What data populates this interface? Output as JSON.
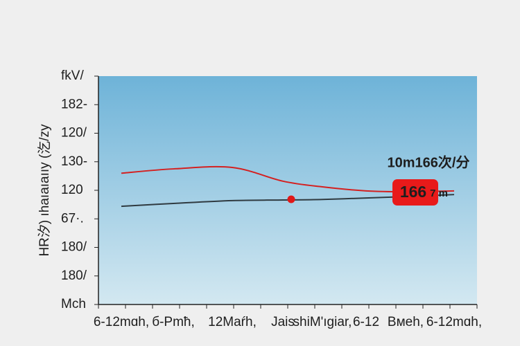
{
  "chart_data": {
    "type": "line",
    "y_label": "HR汐) ıhaıaıaııy (汔/zy",
    "categories": [
      "6-12mɑh,",
      "б-Pmħ,",
      "12Maŕh,",
      "Jais",
      "shiM'ıgiar,",
      "6-12",
      "Bмeh,",
      "6-12mɑh,"
    ],
    "series": [
      {
        "name": "red",
        "color": "#d42020",
        "values": [
          4.6,
          4.75,
          4.8,
          4.32,
          4.12,
          3.98,
          3.95,
          3.98
        ]
      },
      {
        "name": "dark",
        "color": "#2f3a40",
        "values": [
          3.44,
          3.54,
          3.64,
          3.66,
          3.68,
          3.73,
          3.78,
          3.85
        ]
      }
    ],
    "ylim": [
      0,
      8
    ],
    "yticks": [
      {
        "value": 0,
        "label": "Mch"
      },
      {
        "value": 1,
        "label": "180/"
      },
      {
        "value": 2,
        "label": "180/"
      },
      {
        "value": 3,
        "label": "67·."
      },
      {
        "value": 4,
        "label": "120"
      },
      {
        "value": 5,
        "label": "130-"
      },
      {
        "value": 6,
        "label": "120/"
      },
      {
        "value": 7,
        "label": "182-"
      },
      {
        "value": 8,
        "label": "fkV/"
      }
    ],
    "annotations": [
      {
        "text": "10m166次/分"
      },
      {
        "text": "166",
        "sub": "7 m"
      }
    ]
  }
}
